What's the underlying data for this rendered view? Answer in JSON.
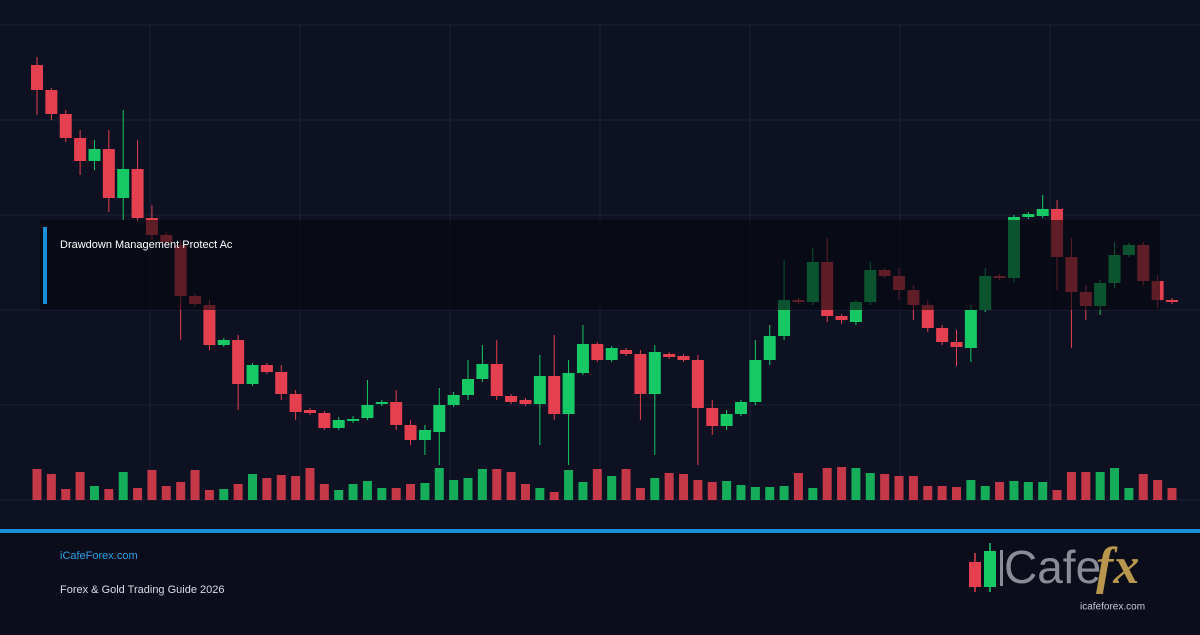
{
  "chart_data": {
    "type": "candlestick",
    "open": [
      435,
      410,
      386,
      362,
      339,
      351,
      302,
      331,
      282,
      265,
      255,
      204,
      195,
      155,
      160,
      116,
      135,
      128,
      106,
      90,
      87,
      72,
      79,
      82,
      96,
      98,
      75,
      60,
      68,
      95,
      105,
      121,
      136,
      104,
      100,
      96,
      124,
      86,
      127,
      156,
      140,
      150,
      146,
      106,
      146,
      144,
      140,
      92,
      74,
      86,
      98,
      140,
      164,
      200,
      198,
      238,
      184,
      178,
      198,
      230,
      224,
      210,
      195,
      172,
      158,
      152,
      190,
      224,
      222,
      283,
      284,
      291,
      243,
      208,
      194,
      217,
      245,
      255,
      219,
      200
    ],
    "high": [
      443,
      412,
      390,
      370,
      360,
      370,
      390,
      360,
      295,
      268,
      260,
      206,
      200,
      162,
      165,
      137,
      137,
      135,
      110,
      92,
      89,
      83,
      84,
      120,
      100,
      110,
      80,
      75,
      112,
      108,
      140,
      155,
      160,
      106,
      102,
      145,
      165,
      140,
      175,
      158,
      154,
      152,
      150,
      155,
      148,
      146,
      145,
      100,
      90,
      100,
      160,
      175,
      240,
      202,
      252,
      262,
      186,
      200,
      238,
      232,
      232,
      215,
      200,
      175,
      170,
      195,
      232,
      226,
      285,
      288,
      305,
      300,
      262,
      215,
      220,
      258,
      257,
      258,
      225,
      202
    ],
    "low": [
      385,
      380,
      358,
      325,
      330,
      288,
      280,
      278,
      260,
      255,
      160,
      194,
      150,
      153,
      90,
      114,
      126,
      100,
      80,
      85,
      70,
      70,
      77,
      80,
      94,
      70,
      55,
      45,
      35,
      93,
      100,
      118,
      100,
      96,
      94,
      55,
      80,
      35,
      125,
      138,
      138,
      144,
      80,
      45,
      141,
      138,
      35,
      65,
      70,
      84,
      95,
      135,
      160,
      196,
      195,
      178,
      176,
      175,
      195,
      222,
      200,
      180,
      168,
      155,
      134,
      138,
      188,
      220,
      218,
      281,
      282,
      210,
      152,
      180,
      185,
      212,
      243,
      215,
      192,
      196
    ],
    "close": [
      410,
      386,
      362,
      339,
      351,
      302,
      331,
      282,
      265,
      258,
      204,
      196,
      155,
      160,
      116,
      135,
      128,
      106,
      88,
      87,
      72,
      80,
      81,
      95,
      98,
      75,
      60,
      70,
      95,
      105,
      121,
      136,
      104,
      98,
      96,
      124,
      86,
      127,
      156,
      140,
      152,
      146,
      106,
      148,
      143,
      140,
      92,
      74,
      86,
      98,
      140,
      164,
      200,
      198,
      238,
      184,
      180,
      198,
      230,
      224,
      210,
      195,
      172,
      158,
      153,
      190,
      224,
      222,
      283,
      286,
      291,
      243,
      208,
      194,
      217,
      245,
      255,
      219,
      200,
      198
    ],
    "volume": [
      31,
      26,
      11,
      28,
      14,
      11,
      28,
      12,
      30,
      14,
      18,
      30,
      10,
      11,
      16,
      26,
      22,
      25,
      24,
      32,
      16,
      10,
      16,
      19,
      12,
      12,
      16,
      17,
      32,
      20,
      22,
      31,
      31,
      28,
      16,
      12,
      8,
      30,
      18,
      31,
      24,
      31,
      12,
      22,
      27,
      26,
      20,
      18,
      19,
      15,
      13,
      13,
      14,
      27,
      12,
      32,
      33,
      32,
      27,
      26,
      24,
      24,
      14,
      14,
      13,
      20,
      14,
      18,
      19,
      18,
      18,
      10,
      28,
      28,
      28,
      32,
      12,
      26,
      20,
      12
    ],
    "up_color": "#17c964",
    "down_color": "#e5404f",
    "ylim": [
      0,
      475
    ],
    "yticks": [
      0,
      95,
      190,
      285,
      380,
      475
    ],
    "vlim": [
      0,
      40
    ],
    "grid": true
  },
  "overlay": {
    "label": "Drawdown Management Protect Ac"
  },
  "footer": {
    "site": "iCafeForex.com",
    "subtitle": "Forex & Gold Trading Guide 2026"
  },
  "logo": {
    "name": "Cafe",
    "mark": "fx",
    "url": "icafeforex.com"
  }
}
